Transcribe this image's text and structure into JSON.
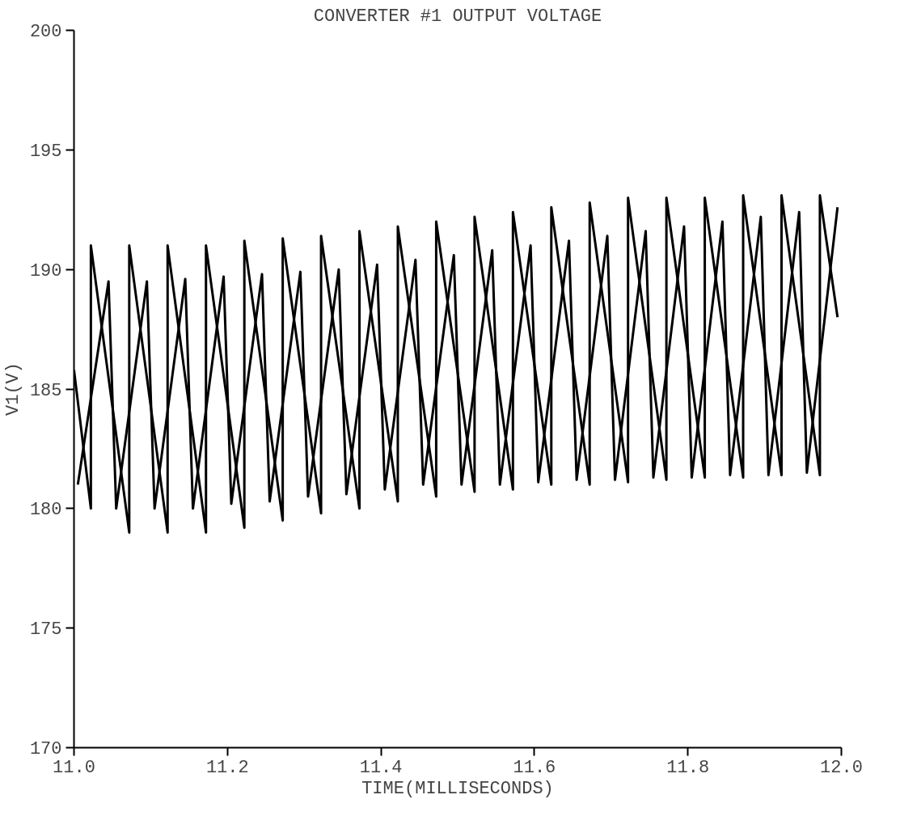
{
  "chart_data": {
    "type": "line",
    "title": "CONVERTER #1 OUTPUT VOLTAGE",
    "xlabel": "TIME(MILLISECONDS)",
    "ylabel": "V1(V)",
    "xlim": [
      11.0,
      12.0
    ],
    "ylim": [
      170,
      200
    ],
    "xticks": [
      {
        "value": 11.0,
        "label": "11.0"
      },
      11.2,
      11.4,
      11.6,
      11.8,
      {
        "value": 12.0,
        "label": "12.0"
      }
    ],
    "yticks": [
      170,
      175,
      180,
      185,
      190,
      195,
      200
    ],
    "grid": false,
    "marker": "none",
    "line_style": "solid",
    "series": [
      {
        "color": "#000000",
        "x": [
          11.005,
          11.045,
          11.055,
          11.095,
          11.105,
          11.145,
          11.155,
          11.195,
          11.205,
          11.245,
          11.255,
          11.295,
          11.305,
          11.345,
          11.355,
          11.395,
          11.405,
          11.445,
          11.455,
          11.495,
          11.505,
          11.545,
          11.555,
          11.595,
          11.605,
          11.645,
          11.655,
          11.695,
          11.705,
          11.745,
          11.755,
          11.795,
          11.805,
          11.845,
          11.855,
          11.895,
          11.905,
          11.945,
          11.955,
          11.995
        ],
        "values": [
          181,
          189.5,
          180,
          189.5,
          180,
          189.6,
          180,
          189.7,
          180.2,
          189.8,
          180.3,
          189.9,
          180.5,
          190,
          180.6,
          190.2,
          180.8,
          190.4,
          181,
          190.6,
          181,
          190.8,
          181,
          191,
          181.1,
          191.2,
          181.2,
          191.4,
          181.2,
          191.6,
          181.3,
          191.8,
          181.3,
          192,
          181.4,
          192.2,
          181.4,
          192.4,
          181.5,
          192.6
        ]
      },
      {
        "color": "#000000",
        "x": [
          11.0,
          11.022,
          11.022,
          11.072,
          11.072,
          11.122,
          11.122,
          11.172,
          11.172,
          11.222,
          11.222,
          11.272,
          11.272,
          11.322,
          11.322,
          11.372,
          11.372,
          11.422,
          11.422,
          11.472,
          11.472,
          11.522,
          11.522,
          11.572,
          11.572,
          11.622,
          11.622,
          11.672,
          11.672,
          11.722,
          11.722,
          11.772,
          11.772,
          11.822,
          11.822,
          11.872,
          11.872,
          11.922,
          11.922,
          11.972,
          11.972,
          11.995
        ],
        "values": [
          185.8,
          180,
          191,
          179,
          191,
          179,
          191,
          179,
          191,
          179.2,
          191.2,
          179.5,
          191.3,
          179.8,
          191.4,
          180,
          191.6,
          180.3,
          191.8,
          180.5,
          192,
          180.7,
          192.2,
          180.8,
          192.4,
          181,
          192.6,
          181,
          192.8,
          181.1,
          193,
          181.2,
          193,
          181.3,
          193,
          181.3,
          193.1,
          181.4,
          193.1,
          181.4,
          193.1,
          188
        ]
      }
    ]
  }
}
